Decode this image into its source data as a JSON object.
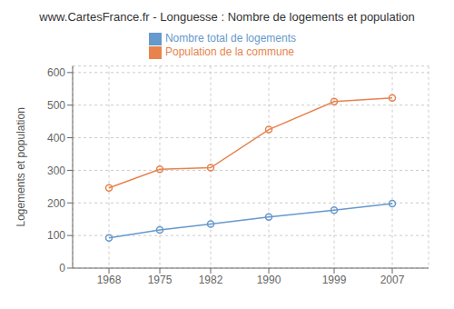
{
  "chart_data": {
    "type": "line",
    "title": "www.CartesFrance.fr - Longuesse : Nombre de logements et population",
    "ylabel": "Logements et population",
    "x": [
      1968,
      1975,
      1982,
      1990,
      1999,
      2007
    ],
    "series": [
      {
        "name": "Nombre total de logements",
        "color": "#6699cc",
        "values": [
          93,
          117,
          135,
          157,
          178,
          198
        ],
        "marker": "circle",
        "line_style": "solid"
      },
      {
        "name": "Population de la commune",
        "color": "#e8834e",
        "values": [
          246,
          303,
          308,
          425,
          511,
          522
        ],
        "marker": "circle",
        "line_style": "solid"
      }
    ],
    "xlim": [
      1963,
      2012
    ],
    "xticks": [
      1968,
      1975,
      1982,
      1990,
      1999,
      2007
    ],
    "ylim": [
      0,
      620
    ],
    "yticks": [
      0,
      100,
      200,
      300,
      400,
      500,
      600
    ],
    "grid": true,
    "legend": "top"
  }
}
